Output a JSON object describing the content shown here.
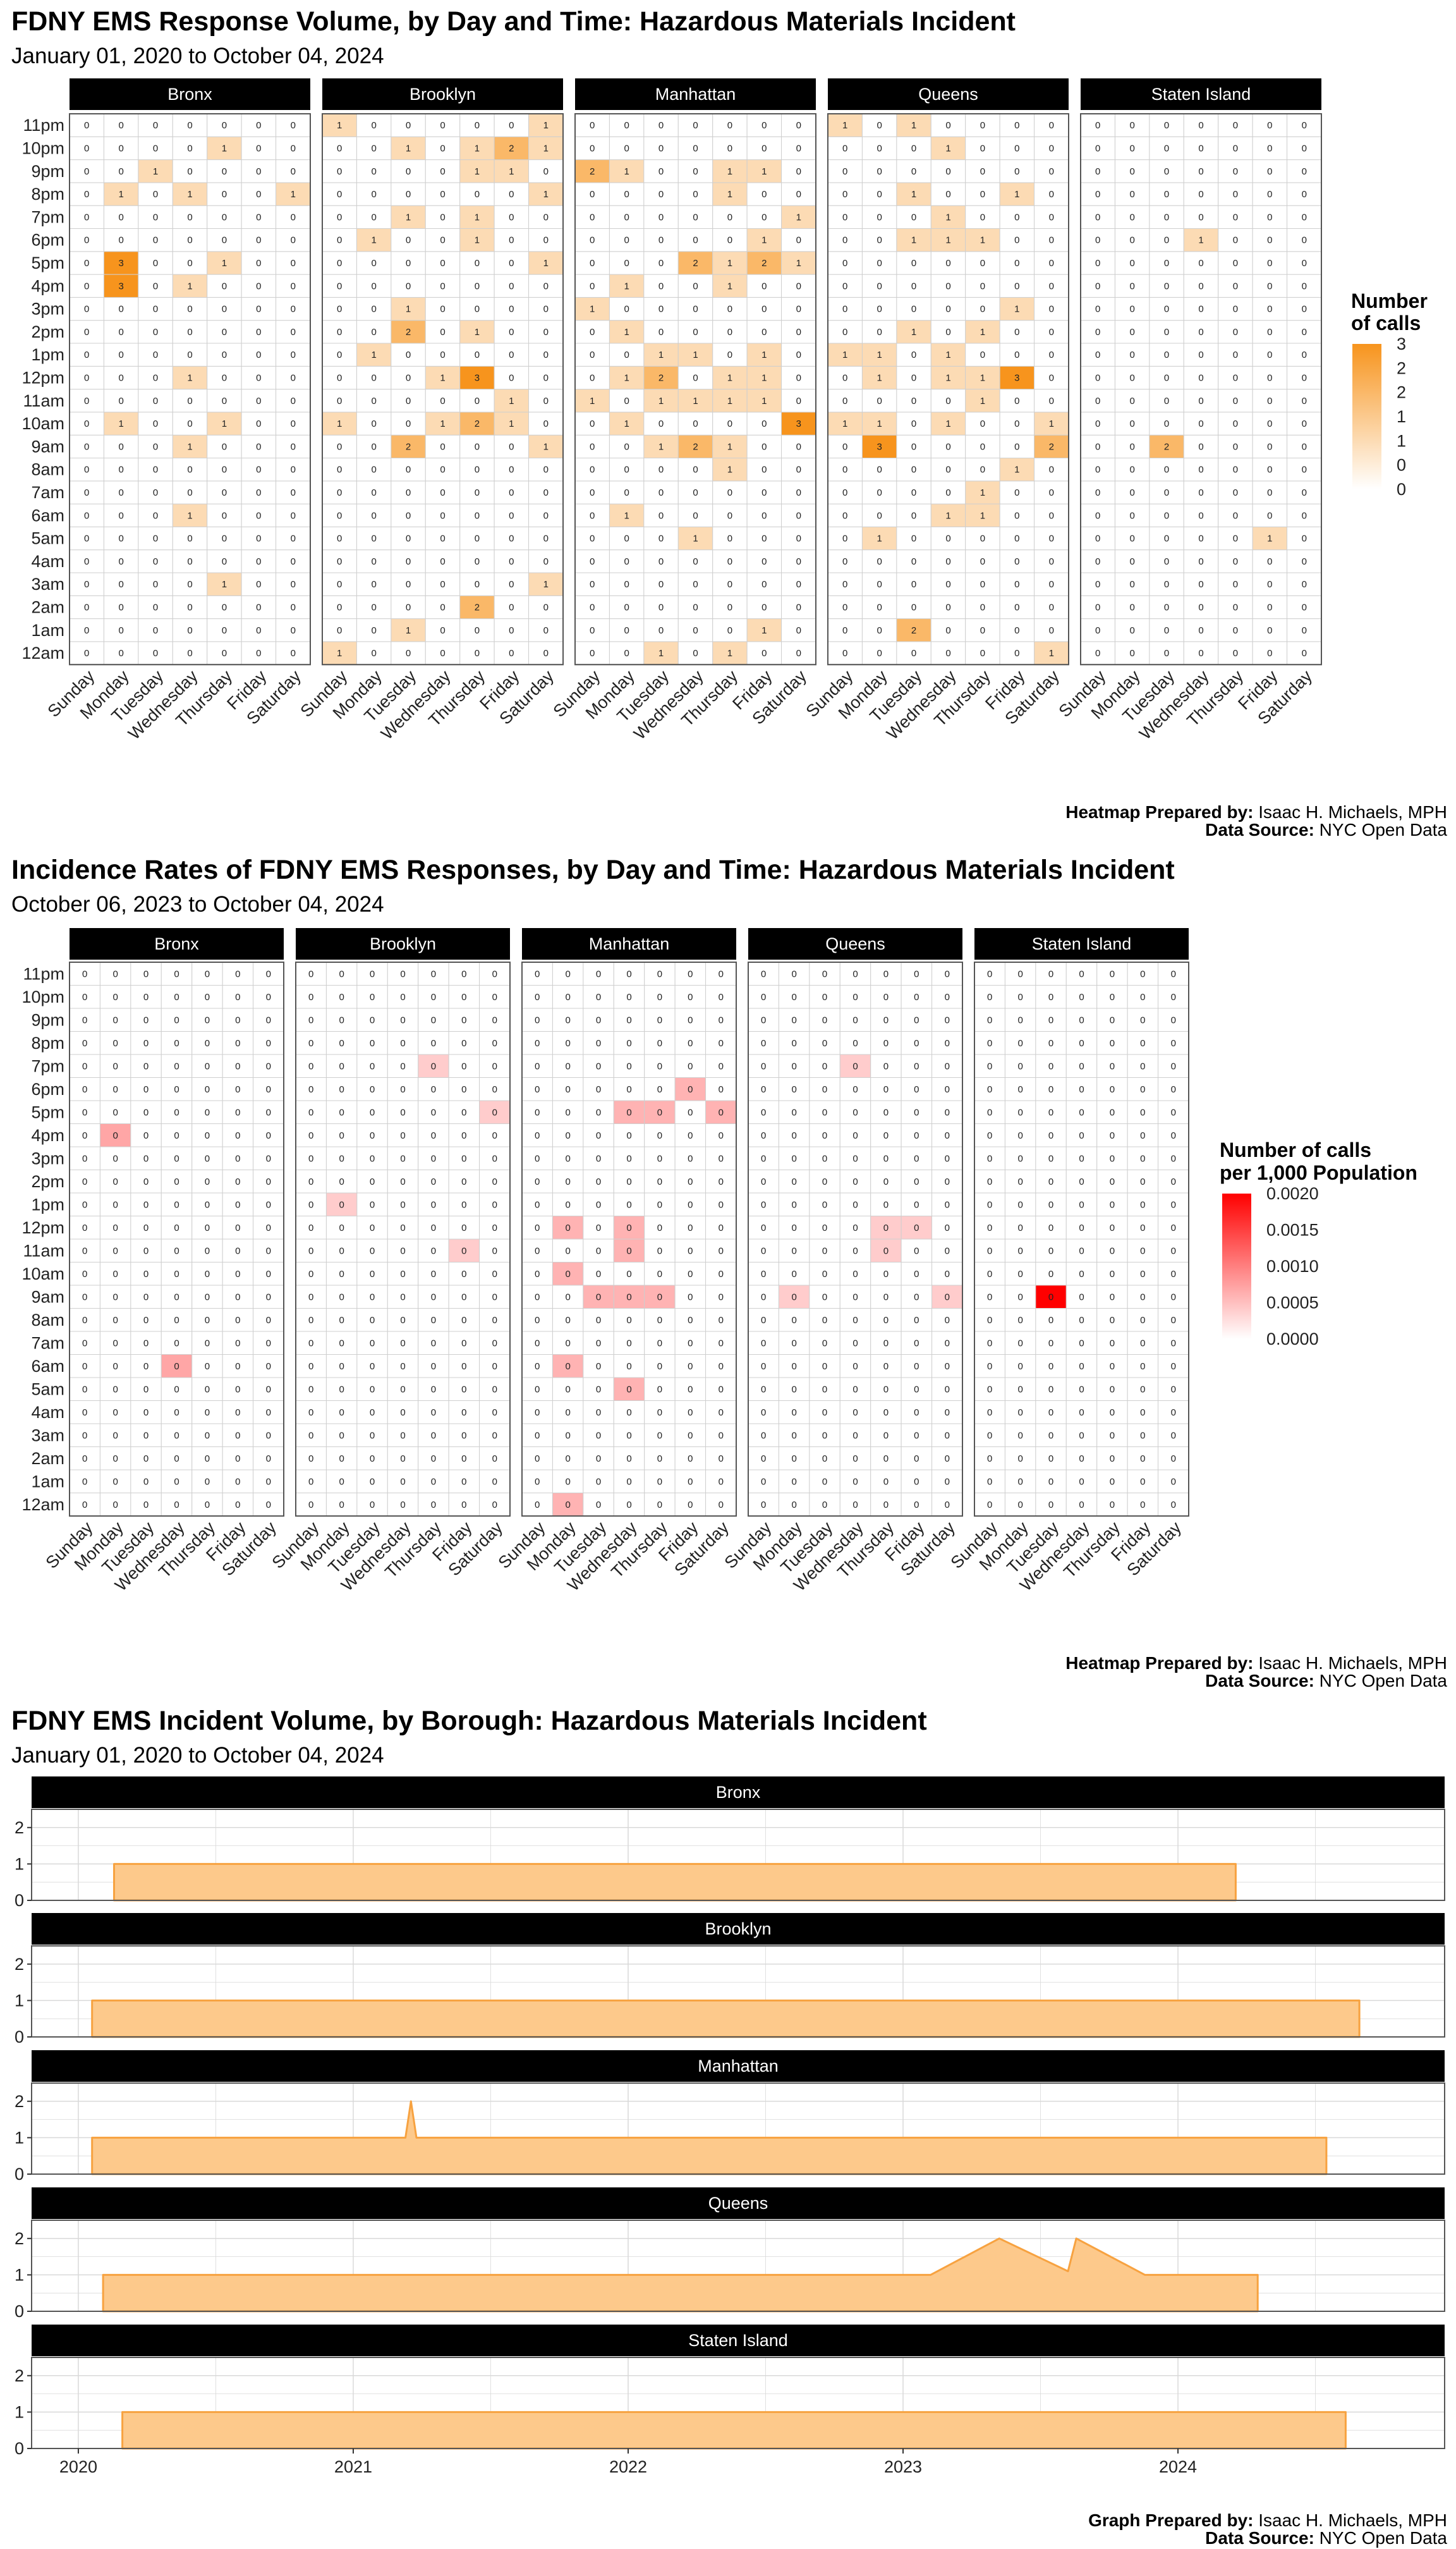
{
  "palette": {
    "orange_high": "#f7941d",
    "orange_line": "#f7a240",
    "orange_fill": "#fdc98b",
    "red_high": "#ff0000",
    "strip_bg": "#000000",
    "grid": "#d9d9d9",
    "cell_border": "#cfcfcf",
    "panel_border": "#555555"
  },
  "axes": {
    "hours": [
      "12am",
      "1am",
      "2am",
      "3am",
      "4am",
      "5am",
      "6am",
      "7am",
      "8am",
      "9am",
      "10am",
      "11am",
      "12pm",
      "1pm",
      "2pm",
      "3pm",
      "4pm",
      "5pm",
      "6pm",
      "7pm",
      "8pm",
      "9pm",
      "10pm",
      "11pm"
    ],
    "days": [
      "Sunday",
      "Monday",
      "Tuesday",
      "Wednesday",
      "Thursday",
      "Friday",
      "Saturday"
    ],
    "boroughs": [
      "Bronx",
      "Brooklyn",
      "Manhattan",
      "Queens",
      "Staten Island"
    ]
  },
  "chart_data": [
    {
      "type": "heatmap",
      "title": "FDNY EMS Response Volume, by Day and Time: Hazardous Materials Incident",
      "subtitle": "January 01, 2020 to October 04, 2024",
      "legend_title": [
        "Number",
        "of calls"
      ],
      "legend_labels": [
        "3",
        "2",
        "2",
        "1",
        "1",
        "0",
        "0"
      ],
      "value_range": [
        0,
        3
      ],
      "value_labels_shown": true,
      "credit": {
        "label1": "Heatmap Prepared by:",
        "value1": "Isaac H. Michaels, MPH",
        "label2": "Data Source:",
        "value2": "NYC Open Data"
      },
      "cells": {
        "Bronx": {
          "3am": [
            0,
            0,
            0,
            0,
            1,
            0,
            0
          ],
          "4pm": [
            0,
            3,
            0,
            1,
            0,
            0,
            0
          ],
          "5pm": [
            0,
            3,
            0,
            0,
            1,
            0,
            0
          ],
          "7pm": [
            0,
            0,
            0,
            0,
            0,
            0,
            0
          ],
          "8pm": [
            0,
            1,
            0,
            1,
            0,
            0,
            1
          ],
          "9pm": [
            0,
            0,
            1,
            0,
            0,
            0,
            0
          ],
          "10pm": [
            0,
            0,
            0,
            0,
            1,
            0,
            0
          ],
          "12pm": [
            0,
            0,
            0,
            1,
            0,
            0,
            0
          ],
          "10am": [
            0,
            1,
            0,
            0,
            1,
            0,
            0
          ],
          "9am": [
            0,
            0,
            0,
            1,
            0,
            0,
            0
          ],
          "6am": [
            0,
            0,
            0,
            1,
            0,
            0,
            0
          ]
        },
        "Brooklyn": {
          "12am": [
            1,
            0,
            0,
            0,
            0,
            0,
            0
          ],
          "1am": [
            0,
            0,
            1,
            0,
            0,
            0,
            0
          ],
          "2am": [
            0,
            0,
            0,
            0,
            2,
            0,
            0
          ],
          "3am": [
            0,
            0,
            0,
            0,
            0,
            0,
            1
          ],
          "9am": [
            0,
            0,
            2,
            0,
            0,
            0,
            1
          ],
          "10am": [
            1,
            0,
            0,
            1,
            2,
            1,
            0
          ],
          "11am": [
            0,
            0,
            0,
            0,
            0,
            1,
            0
          ],
          "12pm": [
            0,
            0,
            0,
            1,
            3,
            0,
            0
          ],
          "1pm": [
            0,
            1,
            0,
            0,
            0,
            0,
            0
          ],
          "2pm": [
            0,
            0,
            2,
            0,
            1,
            0,
            0
          ],
          "3pm": [
            0,
            0,
            1,
            0,
            0,
            0,
            0
          ],
          "5pm": [
            0,
            0,
            0,
            0,
            0,
            0,
            1
          ],
          "6pm": [
            0,
            1,
            0,
            0,
            1,
            0,
            0
          ],
          "7pm": [
            0,
            0,
            1,
            0,
            1,
            0,
            0
          ],
          "8pm": [
            0,
            0,
            0,
            0,
            0,
            0,
            1
          ],
          "9pm": [
            0,
            0,
            0,
            0,
            1,
            1,
            0
          ],
          "10pm": [
            0,
            0,
            1,
            0,
            1,
            2,
            1
          ],
          "11pm": [
            1,
            0,
            0,
            0,
            0,
            0,
            1
          ]
        },
        "Manhattan": {
          "12am": [
            0,
            0,
            1,
            0,
            1,
            0,
            0
          ],
          "1am": [
            0,
            0,
            0,
            0,
            0,
            1,
            0
          ],
          "5am": [
            0,
            0,
            0,
            1,
            0,
            0,
            0
          ],
          "6am": [
            0,
            1,
            0,
            0,
            0,
            0,
            0
          ],
          "8am": [
            0,
            0,
            0,
            0,
            1,
            0,
            0
          ],
          "9am": [
            0,
            0,
            1,
            2,
            1,
            0,
            0
          ],
          "10am": [
            0,
            1,
            0,
            0,
            0,
            0,
            3
          ],
          "11am": [
            1,
            0,
            1,
            1,
            1,
            1,
            0
          ],
          "12pm": [
            0,
            1,
            2,
            0,
            1,
            1,
            0
          ],
          "1pm": [
            0,
            0,
            1,
            1,
            0,
            1,
            0
          ],
          "2pm": [
            0,
            1,
            0,
            0,
            0,
            0,
            0
          ],
          "3pm": [
            1,
            0,
            0,
            0,
            0,
            0,
            0
          ],
          "4pm": [
            0,
            1,
            0,
            0,
            1,
            0,
            0
          ],
          "5pm": [
            0,
            0,
            0,
            2,
            1,
            2,
            1
          ],
          "6pm": [
            0,
            0,
            0,
            0,
            0,
            1,
            0
          ],
          "7pm": [
            0,
            0,
            0,
            0,
            0,
            0,
            1
          ],
          "8pm": [
            0,
            0,
            0,
            0,
            1,
            0,
            0
          ],
          "9pm": [
            2,
            1,
            0,
            0,
            1,
            1,
            0
          ],
          "11pm": [
            0,
            0,
            0,
            0,
            0,
            0,
            0
          ]
        },
        "Queens": {
          "12am": [
            0,
            0,
            0,
            0,
            0,
            0,
            1
          ],
          "1am": [
            0,
            0,
            2,
            0,
            0,
            0,
            0
          ],
          "5am": [
            0,
            1,
            0,
            0,
            0,
            0,
            0
          ],
          "6am": [
            0,
            0,
            0,
            1,
            1,
            0,
            0
          ],
          "7am": [
            0,
            0,
            0,
            0,
            1,
            0,
            0
          ],
          "8am": [
            0,
            0,
            0,
            0,
            0,
            1,
            0
          ],
          "9am": [
            0,
            3,
            0,
            0,
            0,
            0,
            2
          ],
          "10am": [
            1,
            1,
            0,
            1,
            0,
            0,
            1
          ],
          "11am": [
            0,
            0,
            0,
            0,
            1,
            0,
            0
          ],
          "12pm": [
            0,
            1,
            0,
            1,
            1,
            3,
            0
          ],
          "1pm": [
            1,
            1,
            0,
            1,
            0,
            0,
            0
          ],
          "2pm": [
            0,
            0,
            1,
            0,
            1,
            0,
            0
          ],
          "3pm": [
            0,
            0,
            0,
            0,
            0,
            1,
            0
          ],
          "6pm": [
            0,
            0,
            1,
            1,
            1,
            0,
            0
          ],
          "7pm": [
            0,
            0,
            0,
            1,
            0,
            0,
            0
          ],
          "8pm": [
            0,
            0,
            1,
            0,
            0,
            1,
            0
          ],
          "10pm": [
            0,
            0,
            0,
            1,
            0,
            0,
            0
          ],
          "11pm": [
            1,
            0,
            1,
            0,
            0,
            0,
            0
          ]
        },
        "Staten Island": {
          "5am": [
            0,
            0,
            0,
            0,
            0,
            1,
            0
          ],
          "6pm": [
            0,
            0,
            0,
            1,
            0,
            0,
            0
          ],
          "9am": [
            0,
            0,
            2,
            0,
            0,
            0,
            0
          ]
        }
      }
    },
    {
      "type": "heatmap",
      "title": "Incidence Rates of FDNY EMS Responses, by Day and Time: Hazardous Materials Incident",
      "subtitle": "October 06, 2023 to October 04, 2024",
      "legend_title": [
        "Number of calls",
        "per 1,000 Population"
      ],
      "legend_labels": [
        "0.0020",
        "0.0015",
        "0.0010",
        "0.0005",
        "0.0000"
      ],
      "value_range": [
        0,
        0.002
      ],
      "value_labels_shown": true,
      "cell_label_value": "0",
      "credit": {
        "label1": "Heatmap Prepared by:",
        "value1": "Isaac H. Michaels, MPH",
        "label2": "Data Source:",
        "value2": "NYC Open Data"
      },
      "cells": {
        "Bronx": {
          "4pm": [
            0,
            0.0007,
            0,
            0,
            0,
            0,
            0
          ],
          "6am": [
            0,
            0,
            0,
            0.0007,
            0,
            0,
            0
          ]
        },
        "Brooklyn": {
          "1pm": [
            0,
            0.0004,
            0,
            0,
            0,
            0,
            0
          ],
          "5pm": [
            0,
            0,
            0,
            0,
            0,
            0,
            0.0004
          ],
          "7pm": [
            0,
            0,
            0,
            0,
            0.0004,
            0,
            0
          ],
          "11am": [
            0,
            0,
            0,
            0,
            0,
            0.0004,
            0
          ]
        },
        "Manhattan": {
          "12am": [
            0,
            0.0006,
            0,
            0,
            0,
            0,
            0
          ],
          "5am": [
            0,
            0,
            0,
            0.0006,
            0,
            0,
            0
          ],
          "6am": [
            0,
            0.0006,
            0,
            0,
            0,
            0,
            0
          ],
          "9am": [
            0,
            0,
            0.0006,
            0.0006,
            0.0006,
            0,
            0
          ],
          "10am": [
            0,
            0.0006,
            0,
            0,
            0,
            0,
            0
          ],
          "11am": [
            0,
            0,
            0,
            0.0006,
            0,
            0,
            0
          ],
          "12pm": [
            0,
            0.0006,
            0,
            0.0006,
            0,
            0,
            0
          ],
          "5pm": [
            0,
            0,
            0,
            0.0006,
            0.0006,
            0,
            0.0006
          ],
          "6pm": [
            0,
            0,
            0,
            0,
            0,
            0.0006,
            0
          ]
        },
        "Queens": {
          "9am": [
            0,
            0.0004,
            0,
            0,
            0,
            0,
            0.0004
          ],
          "11am": [
            0,
            0,
            0,
            0,
            0.0004,
            0,
            0
          ],
          "12pm": [
            0,
            0,
            0,
            0,
            0.0004,
            0.0004,
            0
          ],
          "7pm": [
            0,
            0,
            0,
            0.0004,
            0,
            0,
            0
          ]
        },
        "Staten Island": {
          "9am": [
            0,
            0,
            0.002,
            0,
            0,
            0,
            0
          ]
        }
      }
    },
    {
      "type": "area",
      "title": "FDNY EMS Incident Volume, by Borough: Hazardous Materials Incident",
      "subtitle": "January 01, 2020 to October 04, 2024",
      "x_ticks": [
        "2020",
        "2021",
        "2022",
        "2023",
        "2024"
      ],
      "xlim": [
        2019.83,
        2024.97
      ],
      "ylim": [
        0,
        2.5
      ],
      "y_ticks": [
        "0",
        "1",
        "2"
      ],
      "credit": {
        "label1": "Graph Prepared by:",
        "value1": "Isaac H. Michaels, MPH",
        "label2": "Data Source:",
        "value2": "NYC Open Data"
      },
      "series": [
        {
          "name": "Bronx",
          "x": [
            2020.13,
            2020.13,
            2024.21,
            2024.21
          ],
          "y": [
            0,
            1,
            1,
            0
          ]
        },
        {
          "name": "Brooklyn",
          "x": [
            2020.05,
            2020.05,
            2024.66,
            2024.66
          ],
          "y": [
            0,
            1,
            1,
            0
          ]
        },
        {
          "name": "Manhattan",
          "x": [
            2020.05,
            2020.05,
            2021.19,
            2021.21,
            2021.23,
            2024.54,
            2024.54
          ],
          "y": [
            0,
            1,
            1,
            2,
            1,
            1,
            0
          ]
        },
        {
          "name": "Queens",
          "x": [
            2020.09,
            2020.09,
            2023.1,
            2023.35,
            2023.6,
            2023.63,
            2023.88,
            2024.29,
            2024.29
          ],
          "y": [
            0,
            1,
            1,
            2,
            1.1,
            2,
            1,
            1,
            0
          ]
        },
        {
          "name": "Staten Island",
          "x": [
            2020.16,
            2020.16,
            2024.61,
            2024.61
          ],
          "y": [
            0,
            1,
            1,
            0
          ]
        }
      ]
    }
  ]
}
